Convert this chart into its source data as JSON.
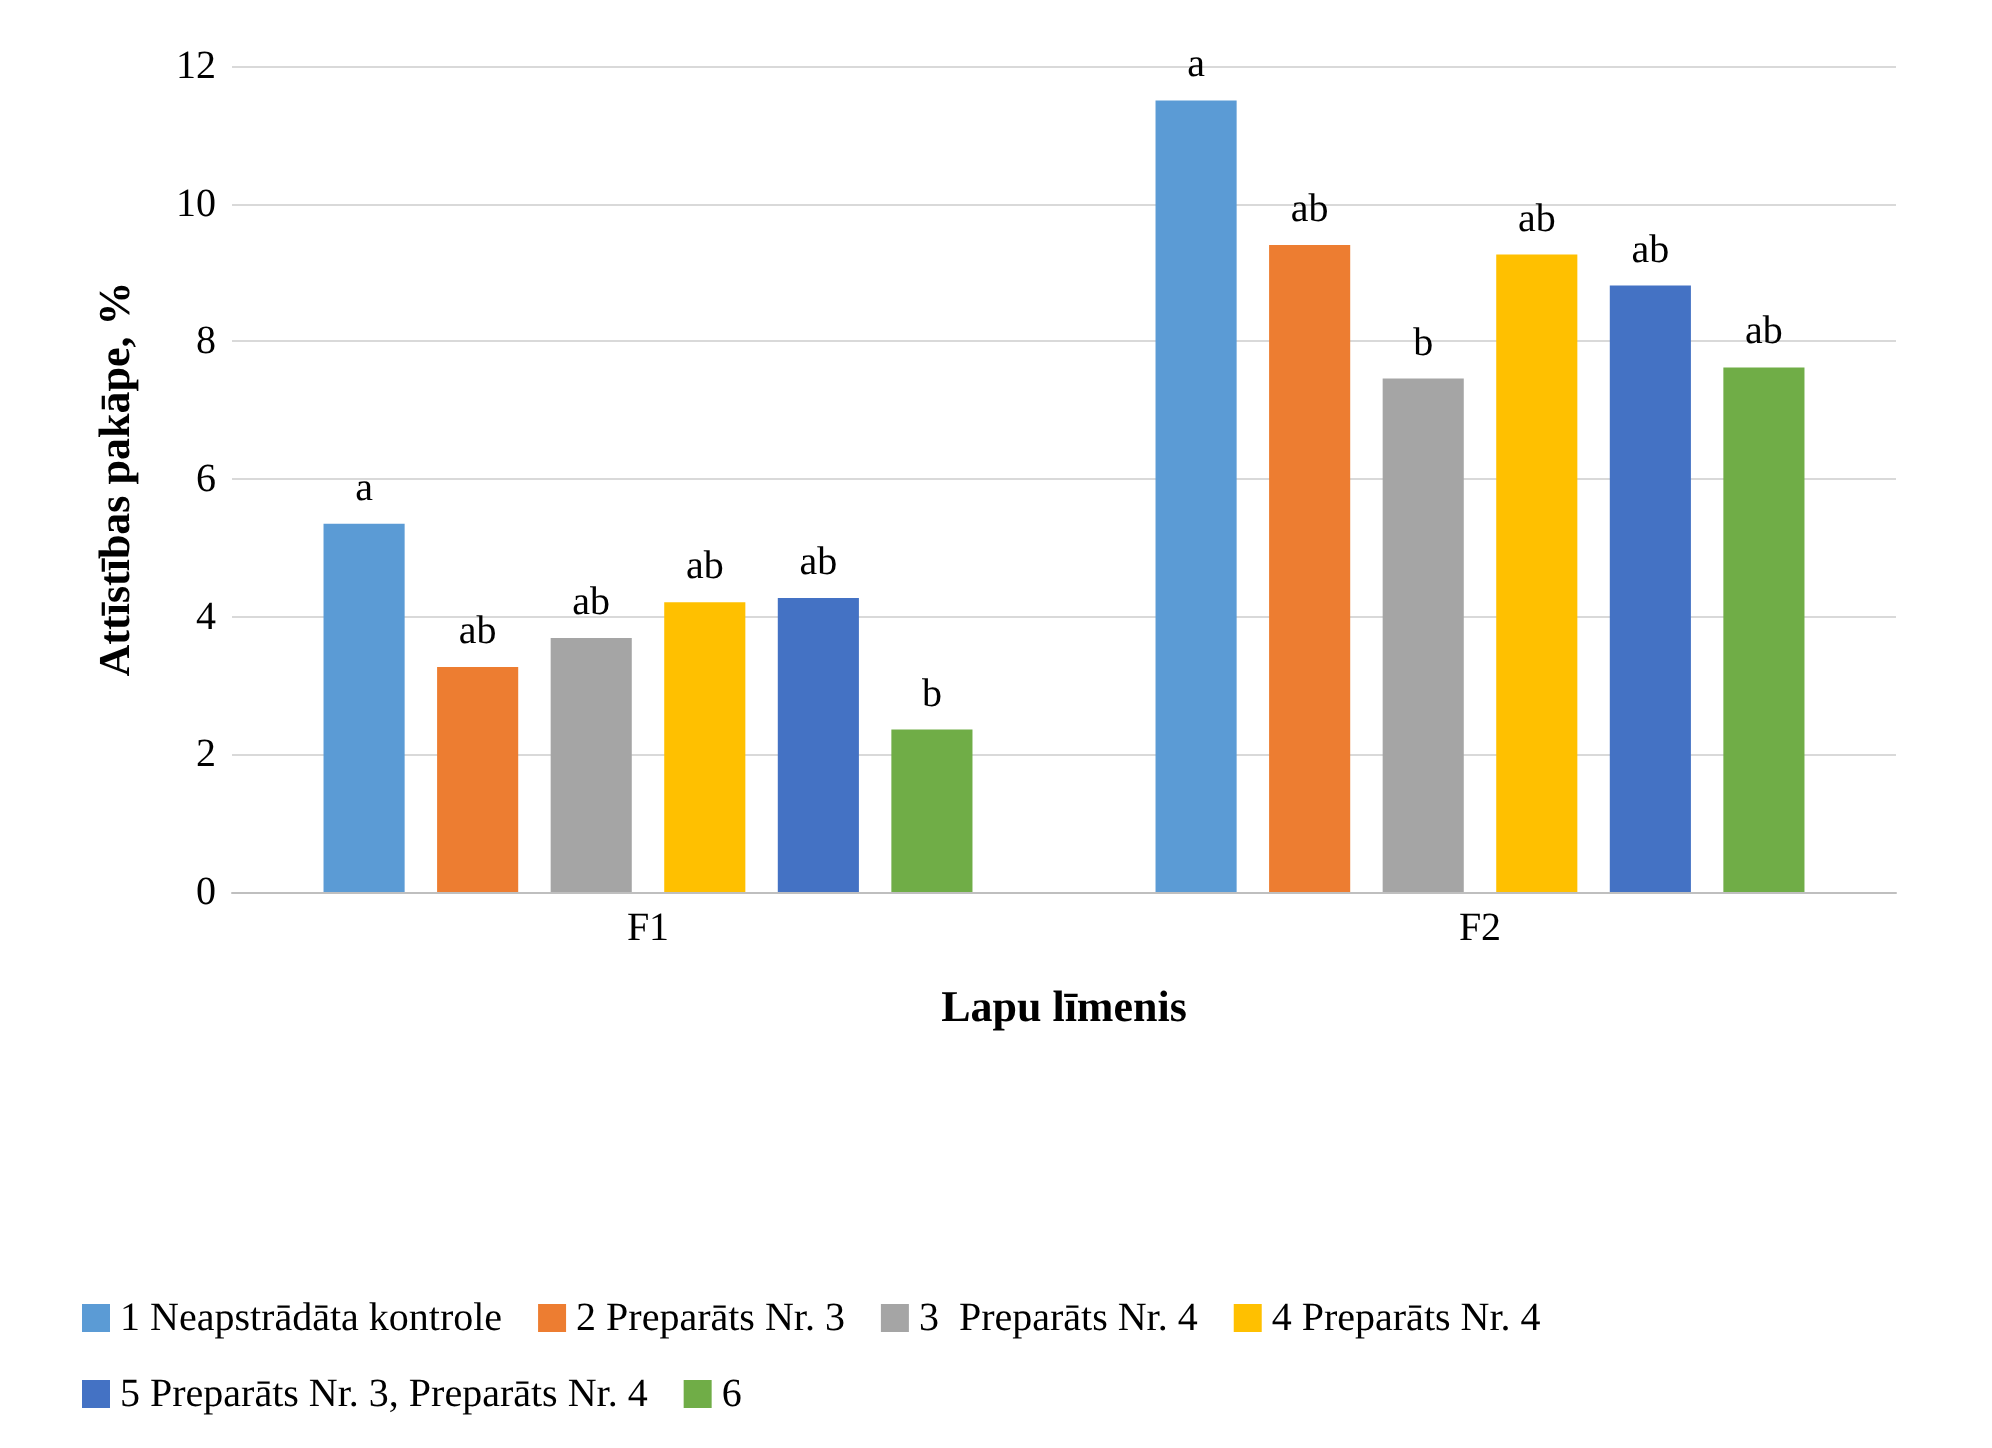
{
  "chart_data": {
    "type": "bar",
    "xlabel": "Lapu līmenis",
    "ylabel": "Attīstības pakāpe, %",
    "categories": [
      "F1",
      "F2"
    ],
    "series": [
      {
        "name": "1 Neapstrādāta kontrole",
        "color": "#5b9bd5",
        "values": [
          5.35,
          11.5
        ],
        "value_labels": [
          "a",
          "a"
        ]
      },
      {
        "name": "2 Preparāts Nr. 3",
        "color": "#ed7d31",
        "values": [
          3.27,
          9.4
        ],
        "value_labels": [
          "ab",
          "ab"
        ]
      },
      {
        "name": "3  Preparāts Nr. 4",
        "color": "#a5a5a5",
        "values": [
          3.69,
          7.46
        ],
        "value_labels": [
          "ab",
          "b"
        ]
      },
      {
        "name": "4 Preparāts Nr. 4",
        "color": "#ffc000",
        "values": [
          4.21,
          9.26
        ],
        "value_labels": [
          "ab",
          "ab"
        ]
      },
      {
        "name": "5 Preparāts Nr. 3, Preparāts Nr. 4",
        "color": "#4472c4",
        "values": [
          4.27,
          8.81
        ],
        "value_labels": [
          "ab",
          "ab"
        ]
      },
      {
        "name": "6",
        "color": "#70ad47",
        "values": [
          2.36,
          7.62
        ],
        "value_labels": [
          "b",
          "ab"
        ]
      }
    ],
    "ylim": [
      0,
      12
    ],
    "yticks": [
      0,
      2,
      4,
      6,
      8,
      10,
      12
    ],
    "grid": "y",
    "legend": "bottom"
  }
}
